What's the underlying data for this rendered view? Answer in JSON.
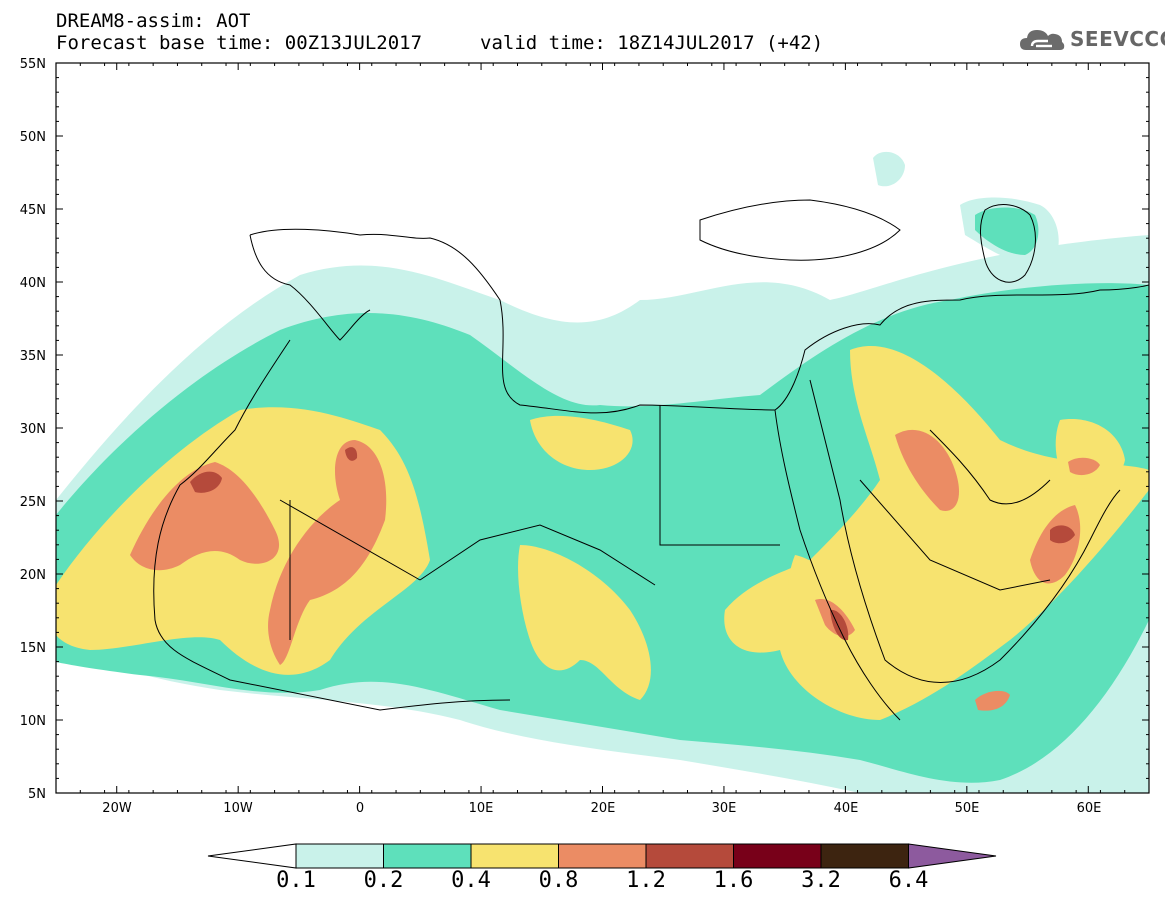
{
  "header": {
    "title": "DREAM8-assim: AOT",
    "base_time": "Forecast base time: 00Z13JUL2017",
    "valid_time": "valid time: 18Z14JUL2017 (+42)"
  },
  "logo": {
    "text": "SEEVCCC",
    "icon": "cloud-icon"
  },
  "map": {
    "lon_range": [
      -25,
      65
    ],
    "lat_range": [
      5,
      55
    ],
    "lat_labels": [
      "55N",
      "50N",
      "45N",
      "40N",
      "35N",
      "30N",
      "25N",
      "20N",
      "15N",
      "10N",
      "5N"
    ],
    "lon_labels": [
      "20W",
      "10W",
      "0",
      "10E",
      "20E",
      "30E",
      "40E",
      "50E",
      "60E"
    ]
  },
  "colorbar": {
    "labels": [
      "0.1",
      "0.2",
      "0.4",
      "0.8",
      "1.2",
      "1.6",
      "3.2",
      "6.4"
    ],
    "colors": [
      "#ffffff",
      "#c9f2ea",
      "#5ee0bb",
      "#f7e36f",
      "#eb8c64",
      "#b54a3b",
      "#780019",
      "#3d2410",
      "#8d5a9e"
    ]
  },
  "chart_data": {
    "type": "heatmap",
    "variable": "AOT",
    "levels": [
      0.1,
      0.2,
      0.4,
      0.8,
      1.2,
      1.6,
      3.2,
      6.4
    ]
  }
}
